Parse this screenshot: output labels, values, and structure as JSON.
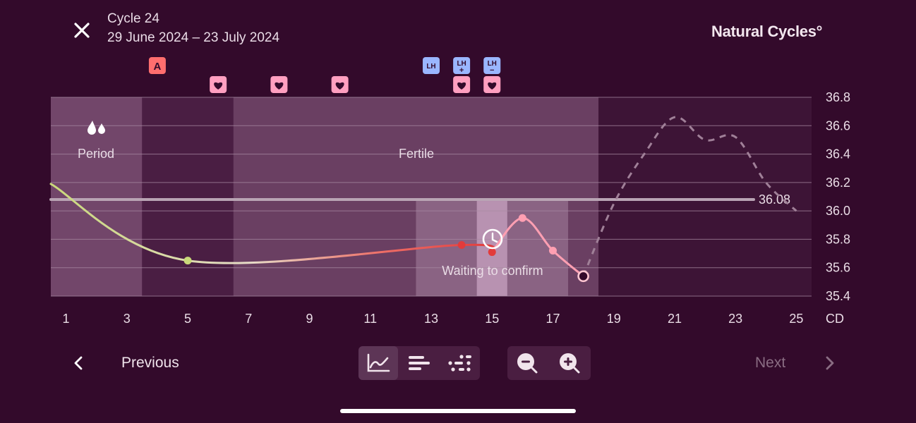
{
  "header": {
    "cycle_title": "Cycle 24",
    "cycle_dates": "29 June 2024 – 23 July 2024",
    "brand": "Natural Cycles°"
  },
  "markers": {
    "a_label": "A",
    "lh_label": "LH",
    "lh_plus_label": "LH+",
    "lh_minus_label": "LH−"
  },
  "phases": {
    "period_label": "Period",
    "fertile_label": "Fertile",
    "waiting_label": "Waiting to confirm"
  },
  "chart_data": {
    "type": "line",
    "x_unit_label": "CD",
    "xlim": [
      0.5,
      25.5
    ],
    "ylim": [
      35.4,
      36.8
    ],
    "y_ticks": [
      36.8,
      36.6,
      36.4,
      36.2,
      36.0,
      35.8,
      35.6,
      35.4
    ],
    "x_ticks": [
      1,
      3,
      5,
      7,
      9,
      11,
      13,
      15,
      17,
      19,
      21,
      23,
      25
    ],
    "coverline": {
      "value": 36.08,
      "label": "36.08"
    },
    "measured": [
      {
        "x": 0.5,
        "y": 36.19
      },
      {
        "x": 5,
        "y": 35.65
      },
      {
        "x": 14,
        "y": 35.76
      },
      {
        "x": 15,
        "y": 35.71
      },
      {
        "x": 16,
        "y": 35.95
      },
      {
        "x": 17,
        "y": 35.72
      },
      {
        "x": 18,
        "y": 35.54
      }
    ],
    "predicted": [
      {
        "x": 18,
        "y": 35.54
      },
      {
        "x": 19,
        "y": 36.05
      },
      {
        "x": 20,
        "y": 36.4
      },
      {
        "x": 21,
        "y": 36.66
      },
      {
        "x": 22,
        "y": 36.5
      },
      {
        "x": 23,
        "y": 36.52
      },
      {
        "x": 24,
        "y": 36.2
      },
      {
        "x": 25,
        "y": 36.0
      }
    ],
    "period_days": [
      1,
      2,
      3
    ],
    "fertile_days": [
      7,
      18
    ],
    "waiting_days": [
      13,
      17
    ],
    "heart_days": [
      6,
      8,
      10,
      14,
      15
    ],
    "a_day": 4,
    "lh_days": [
      {
        "day": 13,
        "type": "LH"
      },
      {
        "day": 14,
        "type": "LH+"
      },
      {
        "day": 15,
        "type": "LH−"
      }
    ]
  },
  "footer": {
    "previous_label": "Previous",
    "next_label": "Next"
  },
  "colors": {
    "background": "#330a2b",
    "curve_low": "#c9d97a",
    "curve_high": "#e8504f",
    "post_ovulation": "#ff9fb2",
    "lh_badge": "#9ab6ff",
    "heart_badge": "#ff9fc0",
    "a_badge": "#ff6e6e"
  }
}
